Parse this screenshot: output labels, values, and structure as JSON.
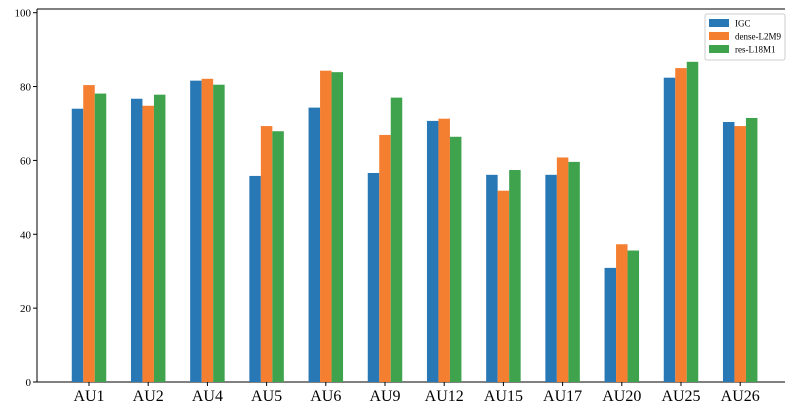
{
  "chart_data": {
    "type": "bar",
    "categories": [
      "AU1",
      "AU2",
      "AU4",
      "AU5",
      "AU6",
      "AU9",
      "AU12",
      "AU15",
      "AU17",
      "AU20",
      "AU25",
      "AU26"
    ],
    "series": [
      {
        "name": "IGC",
        "color": "#2878b5",
        "values": [
          74,
          76.7,
          81.6,
          55.8,
          74.3,
          56.6,
          70.7,
          56.1,
          56.1,
          30.9,
          82.4,
          70.4
        ]
      },
      {
        "name": "dense-L2M9",
        "color": "#f47f30",
        "values": [
          80.4,
          74.8,
          82.1,
          69.3,
          84.3,
          66.9,
          71.3,
          51.8,
          60.8,
          37.3,
          85,
          69.3
        ]
      },
      {
        "name": "res-L18M1",
        "color": "#3fa34d",
        "values": [
          78.1,
          77.8,
          80.5,
          67.9,
          83.9,
          77,
          66.4,
          57.4,
          59.6,
          35.6,
          86.7,
          71.5
        ]
      }
    ],
    "yticks": [
      0,
      20,
      40,
      60,
      80,
      100
    ],
    "ylim": [
      0,
      101
    ],
    "xlabel": "",
    "ylabel": "",
    "title": "",
    "legend_position": "top-right",
    "grid": false
  }
}
